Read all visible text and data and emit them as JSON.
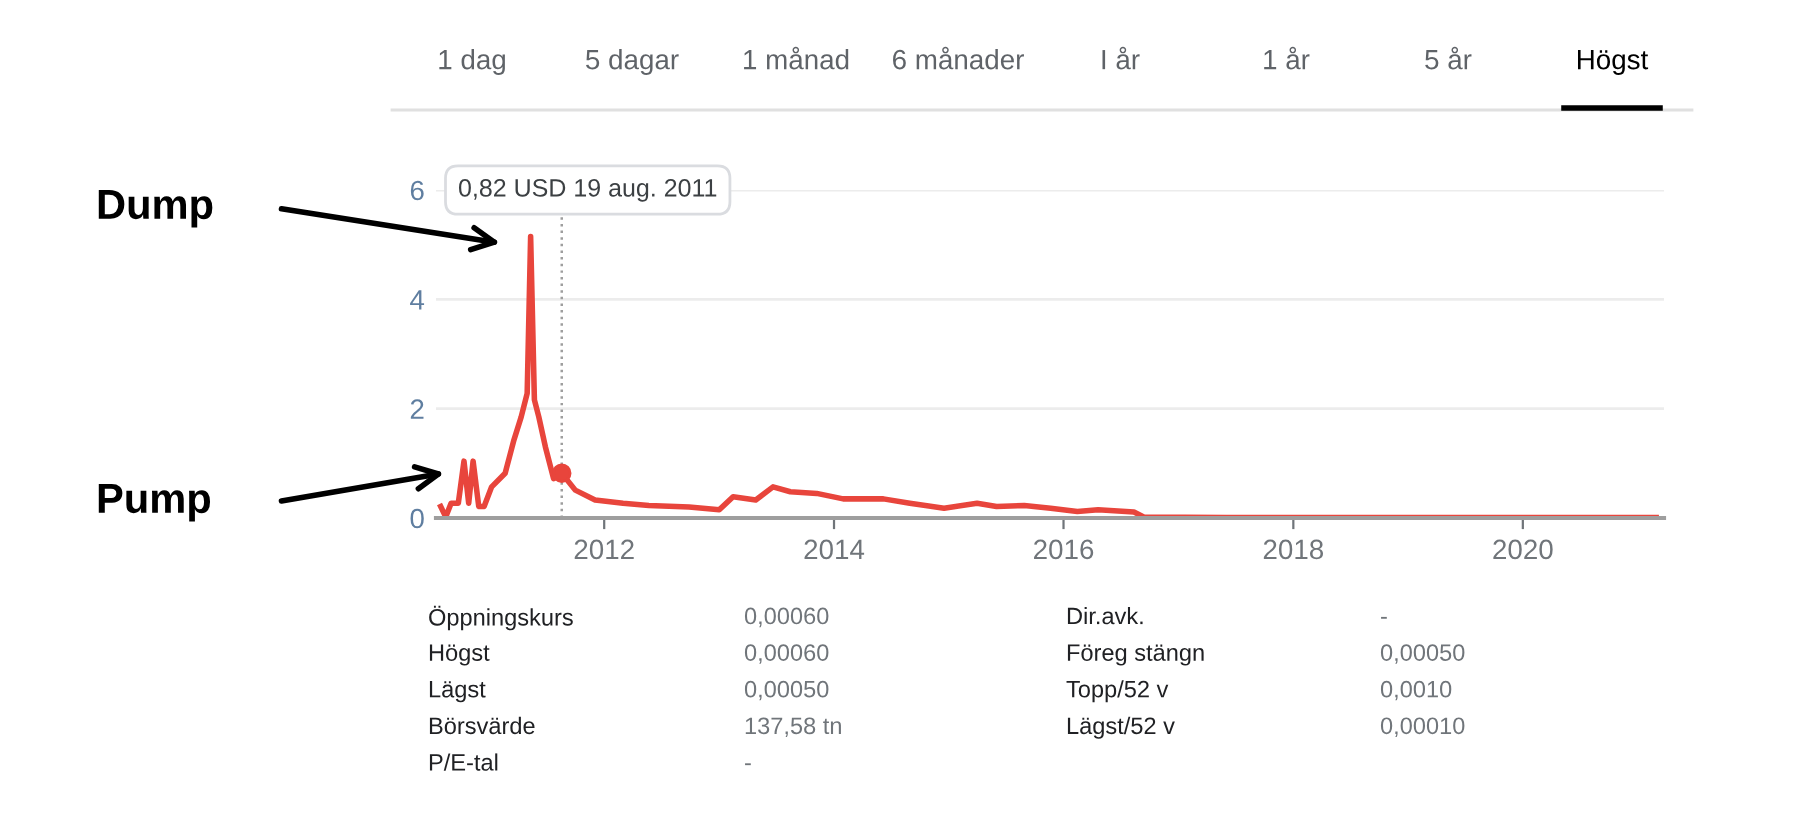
{
  "chart_data": {
    "type": "line",
    "x": [
      "2010-07-30",
      "2010-08-15",
      "2010-09-01",
      "2010-09-24",
      "2010-10-12",
      "2010-10-27",
      "2010-11-10",
      "2010-11-28",
      "2010-12-15",
      "2011-01-08",
      "2011-02-20",
      "2011-03-20",
      "2011-04-12",
      "2011-05-01",
      "2011-05-12",
      "2011-05-24",
      "2011-06-07",
      "2011-06-28",
      "2011-07-24",
      "2011-08-19",
      "2011-10-01",
      "2011-12-03",
      "2012-03-01",
      "2012-05-22",
      "2012-09-27",
      "2013-01-01",
      "2013-02-14",
      "2013-04-27",
      "2013-06-21",
      "2013-08-15",
      "2013-11-07",
      "2014-01-30",
      "2014-06-07",
      "2014-08-30",
      "2014-12-17",
      "2015-04-01",
      "2015-06-02",
      "2015-08-29",
      "2015-11-21",
      "2016-02-14",
      "2016-04-20",
      "2016-08-12",
      "2016-09-12",
      "2017-06-01",
      "2018-06-01",
      "2019-06-01",
      "2020-06-01",
      "2021-02-28"
    ],
    "series": [
      {
        "color": "#e8453c",
        "values": [
          0.21,
          0.02,
          0.27,
          0.27,
          1.04,
          0.27,
          1.04,
          0.21,
          0.21,
          0.57,
          0.82,
          1.43,
          1.85,
          2.28,
          5.15,
          2.16,
          1.85,
          1.3,
          0.72,
          0.82,
          0.51,
          0.33,
          0.27,
          0.23,
          0.2,
          0.15,
          0.39,
          0.33,
          0.57,
          0.48,
          0.45,
          0.35,
          0.35,
          0.27,
          0.18,
          0.27,
          0.21,
          0.23,
          0.18,
          0.12,
          0.15,
          0.11,
          0.02,
          0.01,
          0.01,
          0.01,
          0.01,
          0.01
        ]
      }
    ],
    "xlim": [
      "2010-07-15",
      "2021-03-25"
    ],
    "xticks": [
      {
        "value": "2012",
        "label": "2012"
      },
      {
        "value": "2014",
        "label": "2014"
      },
      {
        "value": "2016",
        "label": "2016"
      },
      {
        "value": "2018",
        "label": "2018"
      },
      {
        "value": "2020",
        "label": "2020"
      }
    ],
    "ylim": [
      0,
      6
    ],
    "yticks": [
      0,
      2,
      4,
      6
    ],
    "grid": "y",
    "ref_lines": [
      {
        "axis": "x",
        "value": "2011-08-19",
        "line_style": "dotted",
        "color": "#9e9e9e"
      }
    ],
    "annotations": [
      "0,82 USD 19 aug. 2011",
      "Dump",
      "Pump",
      "1 dag",
      "5 dagar",
      "1 månad",
      "6 månader",
      "I år",
      "1 år",
      "5 år",
      "Högst",
      "Öppningskurs",
      "0,00060",
      "Dir.avk.",
      "-",
      "Högst",
      "0,00060",
      "Föreg stängn",
      "0,00050",
      "Lägst",
      "0,00050",
      "Topp/52 v",
      "0,0010",
      "Börsvärde",
      "137,58 tn",
      "Lägst/52 v",
      "0,00010",
      "P/E-tal",
      "-"
    ]
  }
}
